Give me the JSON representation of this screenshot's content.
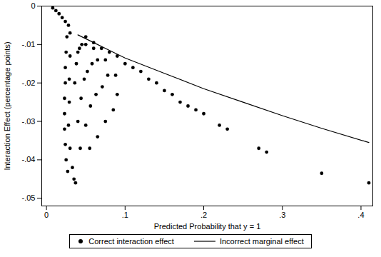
{
  "chart_data": {
    "type": "scatter",
    "x_label": "Predicted Probability that y = 1",
    "y_label": "Interaction Effect (percentage points)",
    "xlim": [
      -0.006,
      0.415
    ],
    "ylim": [
      -0.052,
      0
    ],
    "xticks": [
      0,
      {
        "value": 0.1,
        "label": ".1"
      },
      {
        "value": 0.2,
        "label": ".2"
      },
      {
        "value": 0.3,
        "label": ".3"
      },
      {
        "value": 0.4,
        "label": ".4"
      }
    ],
    "yticks": [
      0,
      {
        "value": -0.01,
        "label": "-.01"
      },
      {
        "value": -0.02,
        "label": "-.02"
      },
      {
        "value": -0.03,
        "label": "-.03"
      },
      {
        "value": -0.04,
        "label": "-.04"
      },
      {
        "value": -0.05,
        "label": "-.05"
      }
    ],
    "grid": false,
    "legend": "bottom",
    "series": [
      {
        "name": "Correct interaction effect",
        "type": "scatter",
        "marker": "circle",
        "color": "#000000",
        "x": [
          0.008,
          0.012,
          0.016,
          0.02,
          0.024,
          0.028,
          0.026,
          0.025,
          0.024,
          0.024,
          0.023,
          0.023,
          0.023,
          0.024,
          0.025,
          0.027,
          0.03,
          0.03,
          0.029,
          0.029,
          0.028,
          0.03,
          0.033,
          0.035,
          0.037,
          0.036,
          0.04,
          0.043,
          0.038,
          0.044,
          0.05,
          0.055,
          0.04,
          0.048,
          0.056,
          0.065,
          0.042,
          0.052,
          0.063,
          0.075,
          0.045,
          0.058,
          0.071,
          0.085,
          0.05,
          0.065,
          0.078,
          0.09,
          0.06,
          0.075,
          0.088,
          0.05,
          0.06,
          0.07,
          0.08,
          0.09,
          0.1,
          0.11,
          0.12,
          0.13,
          0.14,
          0.15,
          0.16,
          0.17,
          0.18,
          0.19,
          0.2,
          0.22,
          0.23,
          0.27,
          0.28,
          0.35,
          0.41
        ],
        "values": [
          -0.0005,
          -0.0012,
          -0.002,
          -0.003,
          -0.004,
          -0.005,
          -0.008,
          -0.012,
          -0.016,
          -0.02,
          -0.024,
          -0.028,
          -0.032,
          -0.036,
          -0.04,
          -0.043,
          -0.007,
          -0.013,
          -0.019,
          -0.025,
          -0.031,
          -0.037,
          -0.042,
          -0.045,
          -0.046,
          -0.02,
          -0.03,
          -0.037,
          -0.015,
          -0.024,
          -0.031,
          -0.037,
          -0.012,
          -0.019,
          -0.026,
          -0.034,
          -0.011,
          -0.017,
          -0.023,
          -0.03,
          -0.01,
          -0.015,
          -0.021,
          -0.027,
          -0.01,
          -0.014,
          -0.018,
          -0.023,
          -0.011,
          -0.014,
          -0.018,
          -0.008,
          -0.0095,
          -0.011,
          -0.012,
          -0.013,
          -0.015,
          -0.016,
          -0.017,
          -0.019,
          -0.02,
          -0.022,
          -0.023,
          -0.025,
          -0.026,
          -0.027,
          -0.028,
          -0.031,
          -0.032,
          -0.037,
          -0.038,
          -0.0435,
          -0.046
        ]
      },
      {
        "name": "Incorrect marginal effect",
        "type": "line",
        "line_style": "solid",
        "color": "#000000",
        "x": [
          0.04,
          0.06,
          0.08,
          0.1,
          0.15,
          0.2,
          0.25,
          0.3,
          0.35,
          0.41
        ],
        "values": [
          -0.0075,
          -0.0095,
          -0.0115,
          -0.0135,
          -0.0175,
          -0.0215,
          -0.025,
          -0.0285,
          -0.0318,
          -0.0355
        ]
      }
    ]
  }
}
